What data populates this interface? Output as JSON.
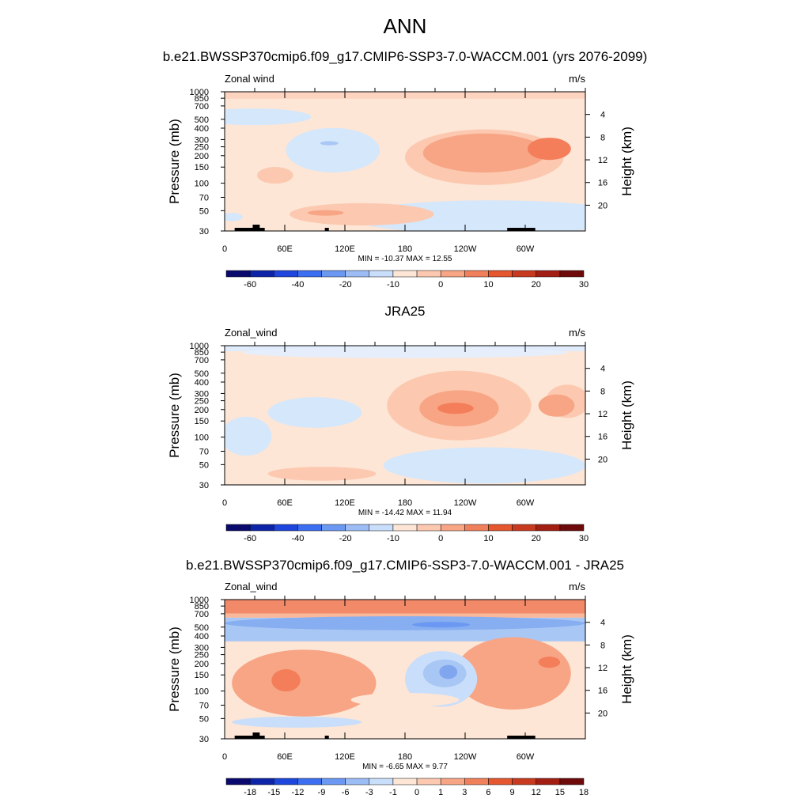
{
  "main_title": "ANN",
  "colors": {
    "main_scale": [
      "#0a0a6e",
      "#0d24a8",
      "#1e46dc",
      "#3b6ef0",
      "#6b98f2",
      "#9cbcf6",
      "#c9defa",
      "#fde6d6",
      "#fcc9b0",
      "#f7a585",
      "#f07f5c",
      "#e4572f",
      "#c83a1f",
      "#a31e12",
      "#6e0a0a"
    ],
    "diff_scale": [
      "#0a0a6e",
      "#0d24a8",
      "#1e46dc",
      "#3b6ef0",
      "#6b98f2",
      "#9cbcf6",
      "#c9defa",
      "#fde6d6",
      "#fcc9b0",
      "#f7a585",
      "#f07f5c",
      "#e4572f",
      "#c83a1f",
      "#a31e12",
      "#6e0a0a"
    ]
  },
  "panels": [
    {
      "id": "model",
      "title": "b.e21.BWSSP370cmip6.f09_g17.CMIP6-SSP3-7.0-WACCM.001 (yrs 2076-2099)",
      "left_label": "Zonal wind",
      "right_label": "m/s",
      "minmax": "MIN = -10.37  MAX =  12.55",
      "colorbar_labels": [
        "-60",
        "-40",
        "-20",
        "-10",
        "0",
        "10",
        "20",
        "30"
      ]
    },
    {
      "id": "obs",
      "title": "JRA25",
      "left_label": "Zonal_wind",
      "right_label": "m/s",
      "minmax": "MIN = -14.42  MAX =  11.94",
      "colorbar_labels": [
        "-60",
        "-40",
        "-20",
        "-10",
        "0",
        "10",
        "20",
        "30"
      ]
    },
    {
      "id": "diff",
      "title": "b.e21.BWSSP370cmip6.f09_g17.CMIP6-SSP3-7.0-WACCM.001 - JRA25",
      "left_label": "Zonal_wind",
      "right_label": "m/s",
      "minmax": "MIN =  -6.65  MAX =   9.77",
      "colorbar_labels": [
        "-18",
        "-15",
        "-12",
        "-9",
        "-6",
        "-3",
        "-1",
        "0",
        "1",
        "3",
        "6",
        "9",
        "12",
        "15",
        "18"
      ]
    }
  ],
  "chart_data": {
    "type": "heatmap",
    "xaxis": {
      "ticks": [
        "0",
        "60E",
        "120E",
        "180",
        "120W",
        "60W"
      ],
      "range_deg": [
        0,
        360
      ]
    },
    "yaxis_left": {
      "label": "Pressure (mb)",
      "ticks": [
        "30",
        "50",
        "70",
        "100",
        "150",
        "200",
        "250",
        "300",
        "400",
        "500",
        "700",
        "850",
        "1000"
      ],
      "range_mb": [
        1000,
        30
      ],
      "scale": "log"
    },
    "yaxis_right": {
      "label": "Height (km)",
      "ticks": [
        "20",
        "16",
        "12",
        "8",
        "4"
      ]
    },
    "panels": [
      {
        "name": "model",
        "min": -10.37,
        "max": 12.55
      },
      {
        "name": "JRA25",
        "min": -14.42,
        "max": 11.94
      },
      {
        "name": "difference",
        "min": -6.65,
        "max": 9.77
      }
    ]
  }
}
